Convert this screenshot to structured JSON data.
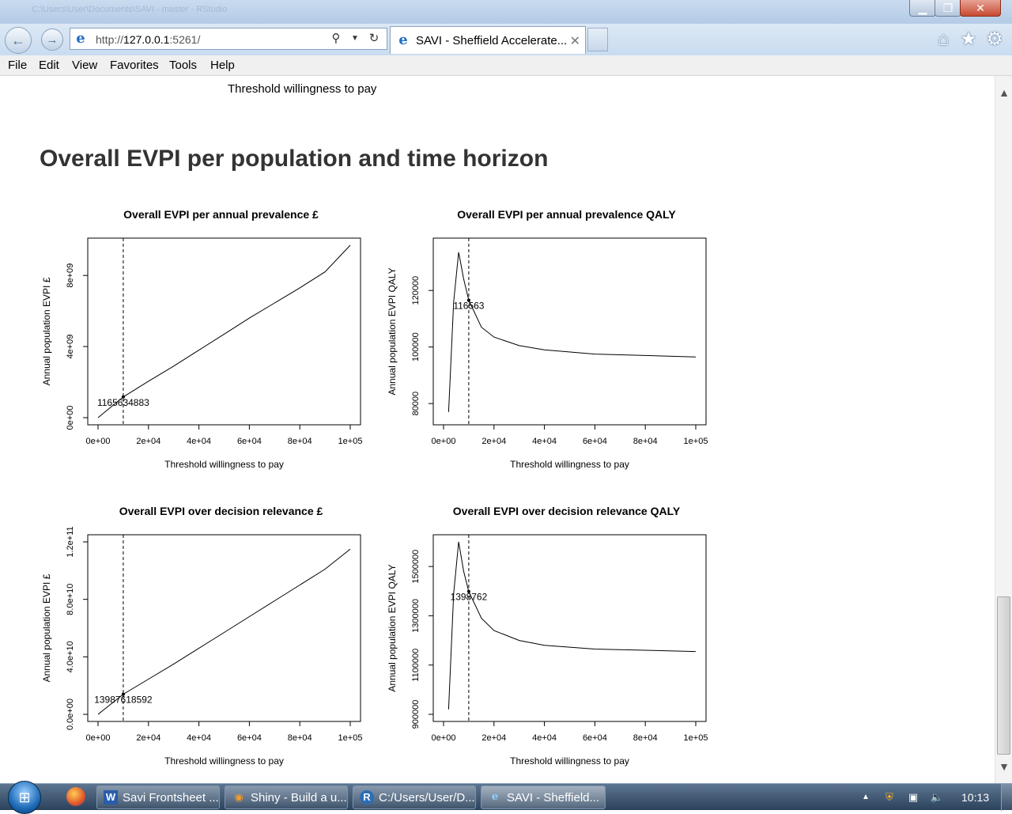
{
  "window": {
    "title_faded": "C:\\Users\\User\\Documents\\SAVI - master - RStudio",
    "minimize_icon": "minimize-icon",
    "maximize_icon": "maximize-icon",
    "close_icon": "close-icon"
  },
  "navbar": {
    "address_prefix": "http://",
    "address_host": "127.0.0.1",
    "address_suffix": ":5261/",
    "tab_title": "SAVI - Sheffield Accelerate...",
    "tab_close": "✕"
  },
  "menu": {
    "items": [
      "File",
      "Edit",
      "View",
      "Favorites",
      "Tools",
      "Help"
    ]
  },
  "content": {
    "top_label": "Threshold willingness to pay",
    "section_title": "Overall EVPI per population and time horizon"
  },
  "chart_data": [
    {
      "type": "line",
      "title": "Overall EVPI per annual prevalence  £",
      "xlabel": "Threshold willingness to pay",
      "ylabel": "Annual population EVPI £",
      "xlim": [
        0,
        100000
      ],
      "ylim": [
        0,
        9700000000
      ],
      "xticks": [
        "0e+00",
        "2e+04",
        "4e+04",
        "6e+04",
        "8e+04",
        "1e+05"
      ],
      "yticks": [
        {
          "v": 0,
          "label": "0e+00"
        },
        {
          "v": 4000000000,
          "label": "4e+09"
        },
        {
          "v": 8000000000,
          "label": "8e+09"
        }
      ],
      "x": [
        0,
        10000,
        20000,
        30000,
        40000,
        50000,
        60000,
        70000,
        80000,
        90000,
        100000
      ],
      "y": [
        0,
        1165634883,
        2050000000,
        2900000000,
        3800000000,
        4700000000,
        5600000000,
        6450000000,
        7300000000,
        8200000000,
        9700000000
      ],
      "vline": 10000,
      "annotation": {
        "x": 10000,
        "y": 1165634883,
        "text": "1165634883"
      }
    },
    {
      "type": "line",
      "title": "Overall EVPI per annual prevalence  QALY",
      "xlabel": "Threshold willingness to pay",
      "ylabel": "Annual population EVPI  QALY",
      "xlim": [
        0,
        100000
      ],
      "ylim": [
        75000,
        136000
      ],
      "xticks": [
        "0e+00",
        "2e+04",
        "4e+04",
        "6e+04",
        "8e+04",
        "1e+05"
      ],
      "yticks": [
        {
          "v": 80000,
          "label": "80000"
        },
        {
          "v": 100000,
          "label": "100000"
        },
        {
          "v": 120000,
          "label": "120000"
        }
      ],
      "x": [
        2000,
        4000,
        6000,
        8000,
        10000,
        15000,
        20000,
        30000,
        40000,
        60000,
        80000,
        100000
      ],
      "y": [
        77000,
        116000,
        133500,
        124000,
        116563,
        107000,
        103500,
        100500,
        99000,
        97500,
        97000,
        96500
      ],
      "vline": 10000,
      "annotation": {
        "x": 10000,
        "y": 116563,
        "text": "116563"
      }
    },
    {
      "type": "line",
      "title": "Overall EVPI over decision relevance  £",
      "xlabel": "Threshold willingness to pay",
      "ylabel": "Annual population EVPI £",
      "xlim": [
        0,
        100000
      ],
      "ylim": [
        0,
        120000000000
      ],
      "xticks": [
        "0e+00",
        "2e+04",
        "4e+04",
        "6e+04",
        "8e+04",
        "1e+05"
      ],
      "yticks": [
        {
          "v": 0,
          "label": "0.0e+00"
        },
        {
          "v": 40000000000,
          "label": "4.0e+10"
        },
        {
          "v": 80000000000,
          "label": "8.0e+10"
        },
        {
          "v": 120000000000,
          "label": "1.2e+11"
        }
      ],
      "x": [
        0,
        10000,
        20000,
        30000,
        40000,
        50000,
        60000,
        70000,
        80000,
        90000,
        100000
      ],
      "y": [
        0,
        13987618592,
        24500000000,
        35000000000,
        46000000000,
        57000000000,
        68000000000,
        79000000000,
        90000000000,
        101000000000,
        115000000000
      ],
      "vline": 10000,
      "annotation": {
        "x": 10000,
        "y": 13987618592,
        "text": "13987618592"
      }
    },
    {
      "type": "line",
      "title": "Overall EVPI over decision relevance  QALY",
      "xlabel": "Threshold willingness to pay",
      "ylabel": "Annual population EVPI  QALY",
      "xlim": [
        0,
        100000
      ],
      "ylim": [
        900000,
        1600000
      ],
      "xticks": [
        "0e+00",
        "2e+04",
        "4e+04",
        "6e+04",
        "8e+04",
        "1e+05"
      ],
      "yticks": [
        {
          "v": 900000,
          "label": "900000"
        },
        {
          "v": 1100000,
          "label": "1100000"
        },
        {
          "v": 1300000,
          "label": "1300000"
        },
        {
          "v": 1500000,
          "label": "1500000"
        }
      ],
      "x": [
        2000,
        4000,
        6000,
        8000,
        10000,
        15000,
        20000,
        30000,
        40000,
        60000,
        80000,
        100000
      ],
      "y": [
        920000,
        1390000,
        1600000,
        1480000,
        1398762,
        1290000,
        1240000,
        1200000,
        1180000,
        1165000,
        1160000,
        1155000
      ],
      "vline": 10000,
      "annotation": {
        "x": 10000,
        "y": 1398762,
        "text": "1398762"
      }
    }
  ],
  "scrollbar": {
    "up": "▲",
    "down": "▼"
  },
  "taskbar": {
    "start_icon": "windows-start-icon",
    "pinned": "firefox-icon",
    "tasks": [
      {
        "label": "Savi Frontsheet ...",
        "icon": "W"
      },
      {
        "label": "Shiny - Build a u...",
        "icon": "◉"
      },
      {
        "label": "C:/Users/User/D...",
        "icon": "R"
      },
      {
        "label": "SAVI - Sheffield...",
        "icon": "e"
      }
    ],
    "clock": "10:13"
  }
}
